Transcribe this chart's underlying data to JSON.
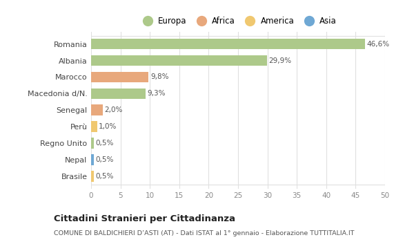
{
  "categories": [
    "Romania",
    "Albania",
    "Marocco",
    "Macedonia d/N.",
    "Senegal",
    "Perù",
    "Regno Unito",
    "Nepal",
    "Brasile"
  ],
  "values": [
    46.6,
    29.9,
    9.8,
    9.3,
    2.0,
    1.0,
    0.5,
    0.5,
    0.5
  ],
  "labels": [
    "46,6%",
    "29,9%",
    "9,8%",
    "9,3%",
    "2,0%",
    "1,0%",
    "0,5%",
    "0,5%",
    "0,5%"
  ],
  "colors": [
    "#adc98a",
    "#adc98a",
    "#e8a87c",
    "#adc98a",
    "#e8a87c",
    "#f0c870",
    "#adc98a",
    "#6fa8d4",
    "#f0c870"
  ],
  "legend_labels": [
    "Europa",
    "Africa",
    "America",
    "Asia"
  ],
  "legend_colors": [
    "#adc98a",
    "#e8a87c",
    "#f0c870",
    "#6fa8d4"
  ],
  "title": "Cittadini Stranieri per Cittadinanza",
  "subtitle": "COMUNE DI BALDICHIERI D’ASTI (AT) - Dati ISTAT al 1° gennaio - Elaborazione TUTTITALIA.IT",
  "xlim": [
    0,
    50
  ],
  "xticks": [
    0,
    5,
    10,
    15,
    20,
    25,
    30,
    35,
    40,
    45,
    50
  ],
  "background_color": "#ffffff",
  "grid_color": "#e0e0e0",
  "bar_height": 0.65
}
